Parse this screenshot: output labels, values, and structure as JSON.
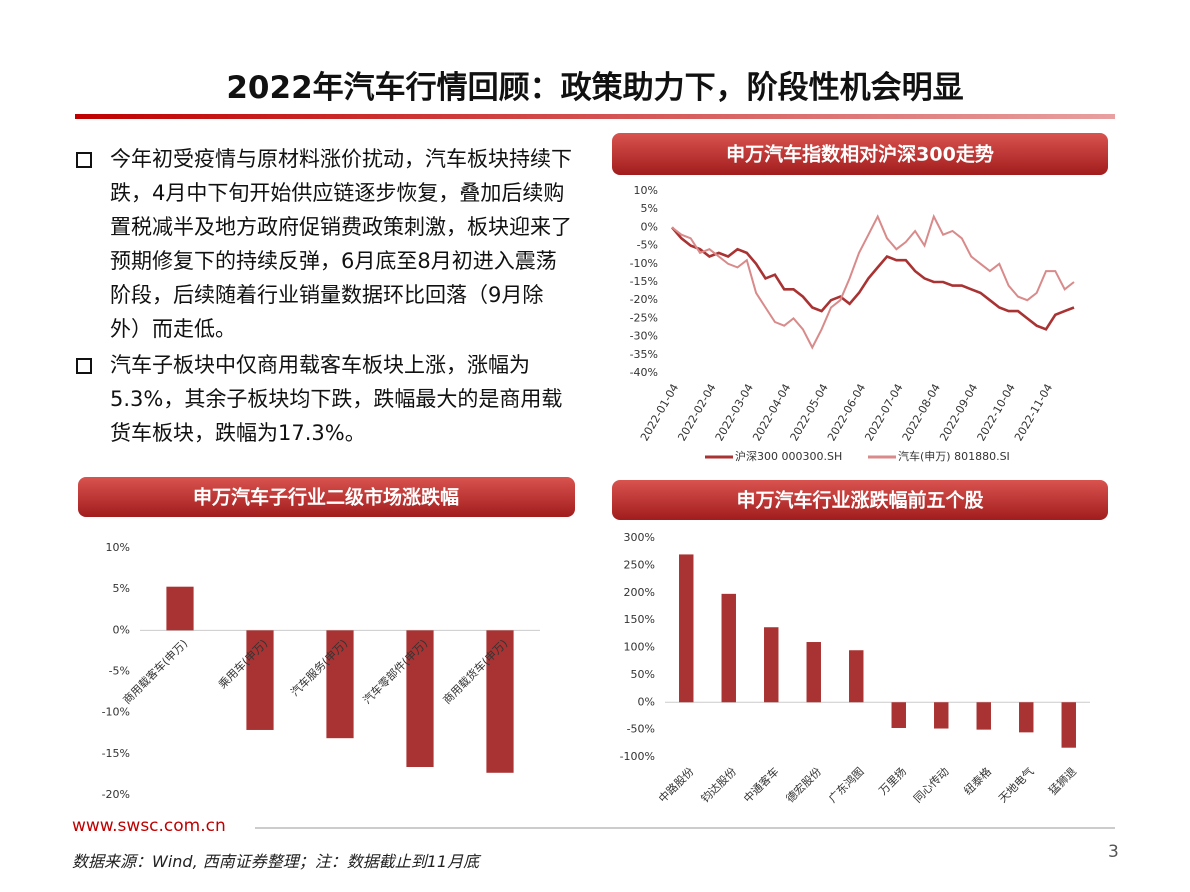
{
  "title": "2022年汽车行情回顾：政策助力下，阶段性机会明显",
  "bullets": [
    "今年初受疫情与原材料涨价扰动，汽车板块持续下跌，4月中下旬开始供应链逐步恢复，叠加后续购置税减半及地方政府促销费政策刺激，板块迎来了预期修复下的持续反弹，6月底至8月初进入震荡阶段，后续随着行业销量数据环比回落（9月除外）而走低。",
    "汽车子板块中仅商用载客车板块上涨，涨幅为5.3%，其余子板块均下跌，跌幅最大的是商用载货车板块，跌幅为17.3%。"
  ],
  "chart_data": [
    {
      "type": "line",
      "title": "申万汽车指数相对沪深300走势",
      "categories": [
        "2022-01-04",
        null,
        null,
        null,
        "2022-02-04",
        null,
        null,
        null,
        "2022-03-04",
        null,
        null,
        null,
        "2022-04-04",
        null,
        null,
        null,
        "2022-05-04",
        null,
        null,
        null,
        "2022-06-04",
        null,
        null,
        null,
        "2022-07-04",
        null,
        null,
        null,
        "2022-08-04",
        null,
        null,
        null,
        "2022-09-04",
        null,
        null,
        null,
        "2022-10-04",
        null,
        null,
        null,
        "2022-11-04",
        null,
        null,
        null
      ],
      "series": [
        {
          "name": "沪深300 000300.SH",
          "color": "#a93232",
          "values": [
            0,
            -3,
            -5,
            -6,
            -8,
            -7,
            -8,
            -6,
            -7,
            -10,
            -14,
            -13,
            -17,
            -17,
            -19,
            -22,
            -23,
            -20,
            -19,
            -21,
            -18,
            -14,
            -11,
            -8,
            -9,
            -9,
            -12,
            -14,
            -15,
            -15,
            -16,
            -16,
            -17,
            -18,
            -20,
            -22,
            -23,
            -23,
            -25,
            -27,
            -28,
            -24,
            -23,
            -22
          ]
        },
        {
          "name": "汽车(申万) 801880.SI",
          "color": "#d98a8a",
          "values": [
            0,
            -2,
            -3,
            -7,
            -6,
            -8,
            -10,
            -11,
            -9,
            -18,
            -22,
            -26,
            -27,
            -25,
            -28,
            -33,
            -28,
            -22,
            -20,
            -14,
            -7,
            -2,
            3,
            -3,
            -6,
            -4,
            -1,
            -5,
            3,
            -2,
            -1,
            -3,
            -8,
            -10,
            -12,
            -10,
            -16,
            -19,
            -20,
            -18,
            -12,
            -12,
            -17,
            -15
          ]
        }
      ],
      "ylim": [
        -40,
        10
      ],
      "yticks": [
        {
          "value": 10,
          "label": "10%"
        },
        {
          "value": 5,
          "label": "5%"
        },
        {
          "value": 0,
          "label": "0%"
        },
        {
          "value": -5,
          "label": "-5%"
        },
        {
          "value": -10,
          "label": "-10%"
        },
        {
          "value": -15,
          "label": "-15%"
        },
        {
          "value": -20,
          "label": "-20%"
        },
        {
          "value": -25,
          "label": "-25%"
        },
        {
          "value": -30,
          "label": "-30%"
        },
        {
          "value": -35,
          "label": "-35%"
        },
        {
          "value": -40,
          "label": "-40%"
        }
      ],
      "legend": "bottom"
    },
    {
      "type": "bar",
      "title": "申万汽车子行业二级市场涨跌幅",
      "color": "#a93232",
      "categories": [
        "商用载客车(申万)",
        "乘用车(申万)",
        "汽车服务(申万)",
        "汽车零部件(申万)",
        "商用载货车(申万)"
      ],
      "values": [
        5.3,
        -12.1,
        -13.1,
        -16.6,
        -17.3
      ],
      "ylim": [
        -20,
        10
      ],
      "yticks": [
        {
          "value": 10,
          "label": "10%"
        },
        {
          "value": 5,
          "label": "5%"
        },
        {
          "value": 0,
          "label": "0%"
        },
        {
          "value": -5,
          "label": "-5%"
        },
        {
          "value": -10,
          "label": "-10%"
        },
        {
          "value": -15,
          "label": "-15%"
        },
        {
          "value": -20,
          "label": "-20%"
        }
      ]
    },
    {
      "type": "bar",
      "title": "申万汽车行业涨跌幅前五个股",
      "color": "#a93232",
      "categories": [
        "中路股份",
        "钧达股份",
        "中通客车",
        "德宏股份",
        "广东鸿图",
        "万里扬",
        "同心传动",
        "纽泰格",
        "天地电气",
        "猛狮退"
      ],
      "values": [
        270,
        198,
        137,
        110,
        95,
        -47,
        -48,
        -50,
        -55,
        -83
      ],
      "ylim": [
        -100,
        300
      ],
      "yticks": [
        {
          "value": 300,
          "label": "300%"
        },
        {
          "value": 250,
          "label": "250%"
        },
        {
          "value": 200,
          "label": "200%"
        },
        {
          "value": 150,
          "label": "150%"
        },
        {
          "value": 100,
          "label": "100%"
        },
        {
          "value": 50,
          "label": "50%"
        },
        {
          "value": 0,
          "label": "0%"
        },
        {
          "value": -50,
          "label": "-50%"
        },
        {
          "value": -100,
          "label": "-100%"
        }
      ]
    }
  ],
  "footer": {
    "website": "www.swsc.com.cn",
    "source": "数据来源：Wind, 西南证券整理；注：数据截止到11月底",
    "page": "3"
  }
}
